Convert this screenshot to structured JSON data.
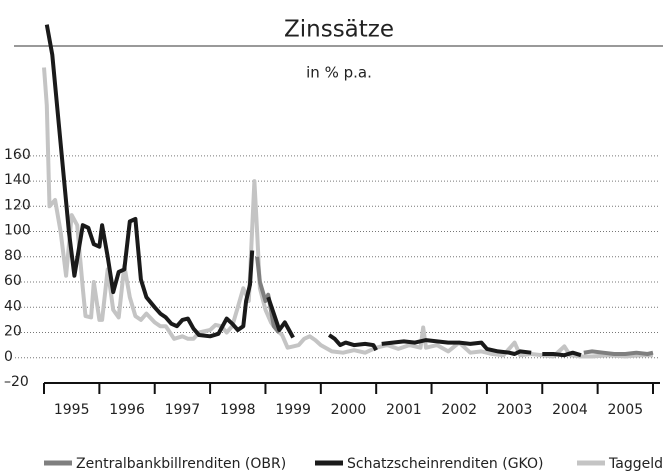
{
  "chart_data": {
    "type": "line",
    "title": "Zinssätze",
    "subtitle": "in % p.a.",
    "xlim": [
      1995,
      2006
    ],
    "xticks": [
      1995,
      1996,
      1997,
      1998,
      1999,
      2000,
      2001,
      2002,
      2003,
      2004,
      2005,
      2006
    ],
    "xtick_labels": [
      "1995",
      "1996",
      "1997",
      "1998",
      "1999",
      "2000",
      "2001",
      "2002",
      "2003",
      "2004",
      "2005"
    ],
    "ylim": [
      -20,
      270
    ],
    "yticks": [
      {
        "value": -20,
        "label": "–20"
      },
      0,
      20,
      40,
      60,
      80,
      100,
      120,
      140,
      160
    ],
    "grid": true,
    "series": [
      {
        "name": "Zentralbankbillrenditen (OBR)",
        "color": "#7f7f7f",
        "x": [
          1998.85,
          1998.9,
          1999.0,
          1999.05,
          1999.15,
          1999.25,
          null,
          2004.75,
          2004.9,
          2005.1,
          2005.3,
          2005.5,
          2005.7,
          2005.9,
          2006.0
        ],
        "values": [
          80,
          60,
          45,
          50,
          25,
          20,
          null,
          4,
          5,
          4,
          3,
          3,
          4,
          3,
          4
        ]
      },
      {
        "name": "Schatzscheinrenditen (GKO)",
        "color": "#1a1a1a",
        "x": [
          1995.05,
          1995.15,
          1995.3,
          1995.45,
          1995.55,
          1995.7,
          1995.8,
          1995.9,
          1996.0,
          1996.05,
          1996.15,
          1996.25,
          1996.35,
          1996.45,
          1996.55,
          1996.65,
          1996.75,
          1996.85,
          1997.0,
          1997.1,
          1997.2,
          1997.3,
          1997.4,
          1997.5,
          1997.6,
          1997.7,
          1997.8,
          1998.0,
          1998.15,
          1998.3,
          1998.4,
          1998.5,
          1998.6,
          1998.65,
          1998.72,
          1998.76,
          null,
          1999.05,
          1999.15,
          1999.25,
          1999.35,
          1999.45,
          1999.5,
          null,
          2000.15,
          2000.25,
          2000.35,
          2000.45,
          2000.6,
          2000.8,
          2000.95,
          2001.0,
          null,
          2001.1,
          2001.3,
          2001.5,
          2001.7,
          2001.9,
          2002.1,
          2002.3,
          2002.5,
          2002.7,
          2002.9,
          2003.0,
          2003.2,
          2003.4,
          2003.5,
          2003.6,
          2003.8,
          null,
          2004.0,
          2004.2,
          2004.4,
          2004.55,
          2004.7
        ],
        "values": [
          264,
          240,
          170,
          100,
          65,
          105,
          103,
          90,
          88,
          105,
          80,
          52,
          68,
          70,
          108,
          110,
          62,
          48,
          40,
          35,
          32,
          27,
          25,
          30,
          31,
          23,
          18,
          17,
          19,
          31,
          27,
          22,
          25,
          45,
          58,
          85,
          null,
          48,
          35,
          22,
          28,
          20,
          16,
          null,
          18,
          15,
          10,
          12,
          10,
          11,
          10,
          6,
          null,
          11,
          12,
          13,
          12,
          14,
          13,
          12,
          12,
          11,
          12,
          7,
          5,
          4,
          3,
          5,
          4,
          null,
          3,
          3,
          2,
          4,
          2
        ]
      },
      {
        "name": "Taggeld",
        "color": "#c4c4c4",
        "x": [
          1995.0,
          1995.05,
          1995.1,
          1995.2,
          1995.3,
          1995.4,
          1995.5,
          1995.6,
          1995.7,
          1995.75,
          1995.85,
          1995.9,
          1996.0,
          1996.05,
          1996.15,
          1996.25,
          1996.35,
          1996.45,
          1996.55,
          1996.65,
          1996.75,
          1996.85,
          1997.0,
          1997.1,
          1997.2,
          1997.35,
          1997.5,
          1997.6,
          1997.7,
          1997.8,
          1998.0,
          1998.1,
          1998.2,
          1998.3,
          1998.4,
          1998.5,
          1998.6,
          1998.7,
          1998.8,
          1998.85,
          1998.9,
          1999.0,
          1999.1,
          1999.2,
          1999.3,
          1999.4,
          1999.5,
          1999.6,
          1999.7,
          1999.8,
          1999.9,
          2000.0,
          2000.2,
          2000.4,
          2000.6,
          2000.8,
          2001.0,
          2001.2,
          2001.4,
          2001.6,
          2001.8,
          2001.85,
          2001.9,
          2002.1,
          2002.3,
          2002.5,
          2002.7,
          2002.9,
          2003.1,
          2003.3,
          2003.5,
          2003.6,
          2003.8,
          2004.0,
          2004.2,
          2004.4,
          2004.5,
          2004.7,
          2004.9,
          2005.2,
          2005.5,
          2005.8,
          2006.0
        ],
        "values": [
          230,
          200,
          120,
          125,
          100,
          65,
          113,
          105,
          55,
          33,
          32,
          60,
          30,
          30,
          70,
          38,
          32,
          73,
          48,
          33,
          30,
          35,
          28,
          25,
          25,
          15,
          17,
          15,
          15,
          20,
          22,
          26,
          25,
          20,
          25,
          40,
          55,
          45,
          140,
          100,
          55,
          38,
          28,
          22,
          18,
          8,
          9,
          10,
          15,
          17,
          14,
          10,
          5,
          4,
          6,
          4,
          8,
          10,
          7,
          10,
          8,
          24,
          8,
          10,
          5,
          12,
          4,
          5,
          3,
          2,
          12,
          2,
          3,
          2,
          1,
          9,
          2,
          1,
          1,
          2,
          1,
          2,
          2
        ]
      }
    ]
  }
}
